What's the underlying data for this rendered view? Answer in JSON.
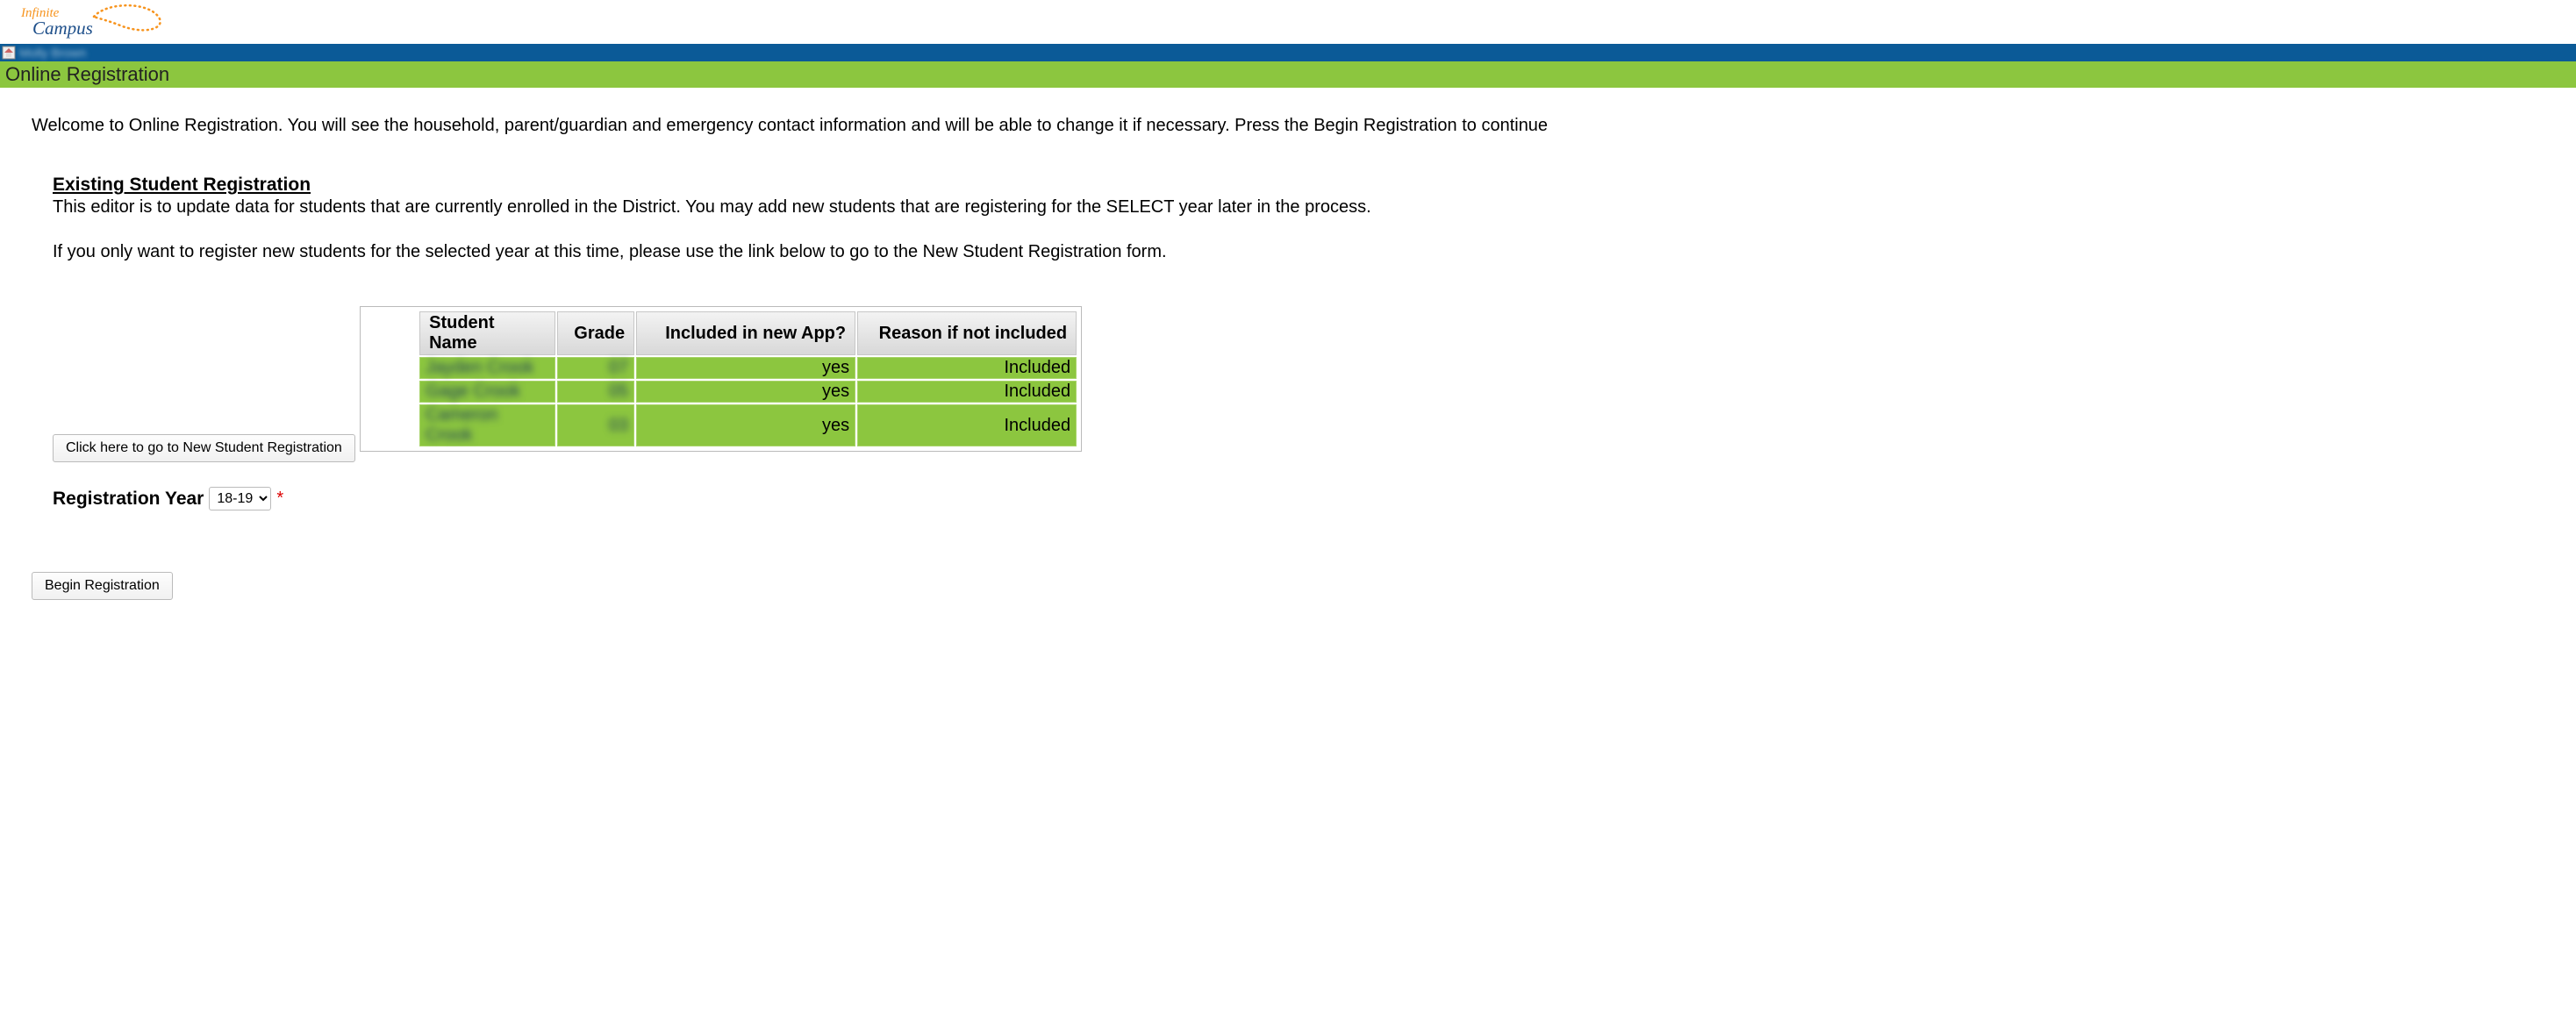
{
  "brand": {
    "name": "Infinite Campus",
    "colors": {
      "orange": "#f7941e",
      "blue": "#1e4f8a",
      "green": "#8cc63f",
      "topbar": "#0b5a97"
    }
  },
  "topbar": {
    "username": "Molly Brown"
  },
  "banner": {
    "title": "Online Registration"
  },
  "welcome": {
    "text": "Welcome to Online Registration. You will see the household, parent/guardian and emergency contact information and will be able to change it if necessary. Press the Begin Registration to continue"
  },
  "existing": {
    "title": "Existing Student Registration",
    "desc": "This editor is to update data for students that are currently enrolled in the District. You may add new students that are registering for the SELECT year later in the process.",
    "desc2": "If you only want to register new students for the selected year at this time, please use the link below to go to the New Student Registration form.",
    "new_student_button": "Click here to go to New Student Registration"
  },
  "table": {
    "columns": {
      "name": "Student Name",
      "grade": "Grade",
      "included": "Included in new App?",
      "reason": "Reason if not included"
    },
    "rows": [
      {
        "name": "Jayden Crook",
        "grade": "07",
        "included": "yes",
        "reason": "Included"
      },
      {
        "name": "Gage Crook",
        "grade": "05",
        "included": "yes",
        "reason": "Included"
      },
      {
        "name": "Cameron Crook",
        "grade": "03",
        "included": "yes",
        "reason": "Included"
      }
    ]
  },
  "reg_year": {
    "label": "Registration Year",
    "selected": "18-19",
    "options": [
      "18-19"
    ]
  },
  "actions": {
    "begin": "Begin Registration"
  }
}
